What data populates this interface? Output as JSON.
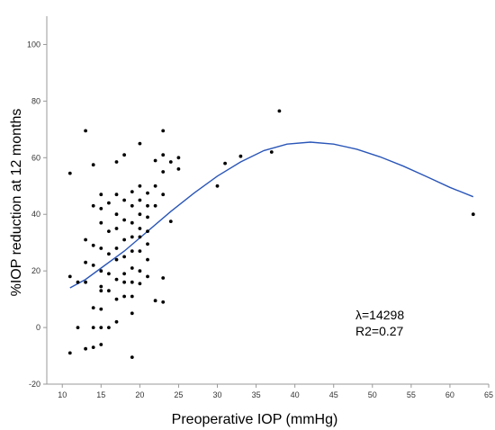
{
  "chart_data": {
    "type": "scatter",
    "title": "",
    "xlabel": "Preoperative IOP (mmHg)",
    "ylabel": "%IOP reduction at 12 months",
    "xlim": [
      8,
      65
    ],
    "ylim": [
      -20,
      110
    ],
    "x_ticks": [
      10,
      15,
      20,
      25,
      30,
      35,
      40,
      45,
      50,
      55,
      60,
      65
    ],
    "y_ticks": [
      -20,
      0,
      20,
      40,
      60,
      80,
      100
    ],
    "grid": false,
    "legend": "none",
    "series": [
      {
        "marker_color": "#000000",
        "points": [
          [
            11,
            54.5
          ],
          [
            11,
            18
          ],
          [
            11,
            -9
          ],
          [
            12,
            16
          ],
          [
            12,
            0
          ],
          [
            13,
            69.5
          ],
          [
            13,
            31
          ],
          [
            13,
            23
          ],
          [
            13,
            16
          ],
          [
            13,
            -7.5
          ],
          [
            14,
            57.5
          ],
          [
            14,
            43
          ],
          [
            14,
            29
          ],
          [
            14,
            22
          ],
          [
            14,
            7
          ],
          [
            14,
            0
          ],
          [
            14,
            -7
          ],
          [
            15,
            47
          ],
          [
            15,
            42
          ],
          [
            15,
            37
          ],
          [
            15,
            28
          ],
          [
            15,
            20
          ],
          [
            15,
            14.5
          ],
          [
            15,
            13
          ],
          [
            15,
            6.5
          ],
          [
            15,
            0
          ],
          [
            15,
            -6
          ],
          [
            16,
            44
          ],
          [
            16,
            34
          ],
          [
            16,
            26
          ],
          [
            16,
            19
          ],
          [
            16,
            13
          ],
          [
            16,
            0
          ],
          [
            17,
            58.5
          ],
          [
            17,
            47
          ],
          [
            17,
            40
          ],
          [
            17,
            35
          ],
          [
            17,
            28
          ],
          [
            17,
            24
          ],
          [
            17,
            17
          ],
          [
            17,
            10
          ],
          [
            17,
            2
          ],
          [
            18,
            61
          ],
          [
            18,
            45
          ],
          [
            18,
            38
          ],
          [
            18,
            31
          ],
          [
            18,
            25
          ],
          [
            18,
            19
          ],
          [
            18,
            16
          ],
          [
            18,
            11
          ],
          [
            19,
            48
          ],
          [
            19,
            43
          ],
          [
            19,
            37
          ],
          [
            19,
            32
          ],
          [
            19,
            27
          ],
          [
            19,
            21
          ],
          [
            19,
            16
          ],
          [
            19,
            11
          ],
          [
            19,
            5
          ],
          [
            19,
            -10.5
          ],
          [
            20,
            65
          ],
          [
            20,
            50
          ],
          [
            20,
            45
          ],
          [
            20,
            40
          ],
          [
            20,
            35
          ],
          [
            20,
            32
          ],
          [
            20,
            27
          ],
          [
            20,
            20
          ],
          [
            20,
            15.5
          ],
          [
            21,
            47.5
          ],
          [
            21,
            43
          ],
          [
            21,
            39
          ],
          [
            21,
            34
          ],
          [
            21,
            29.5
          ],
          [
            21,
            24
          ],
          [
            21,
            18
          ],
          [
            22,
            59
          ],
          [
            22,
            50
          ],
          [
            22,
            43
          ],
          [
            22,
            9.5
          ],
          [
            23,
            69.5
          ],
          [
            23,
            61
          ],
          [
            23,
            55
          ],
          [
            23,
            47
          ],
          [
            23,
            17.5
          ],
          [
            23,
            9
          ],
          [
            24,
            58.5
          ],
          [
            24,
            37.5
          ],
          [
            25,
            60
          ],
          [
            25,
            56
          ],
          [
            30,
            50
          ],
          [
            31,
            58
          ],
          [
            33,
            60.5
          ],
          [
            37,
            62
          ],
          [
            38,
            76.5
          ],
          [
            63,
            40
          ]
        ]
      },
      {
        "type": "line",
        "color": "#2a56b8",
        "points": [
          [
            11,
            14
          ],
          [
            13,
            17
          ],
          [
            15,
            21
          ],
          [
            18,
            27
          ],
          [
            21,
            34
          ],
          [
            24,
            41
          ],
          [
            27,
            47.5
          ],
          [
            30,
            53.5
          ],
          [
            33,
            58.5
          ],
          [
            36,
            62.5
          ],
          [
            39,
            64.8
          ],
          [
            42,
            65.5
          ],
          [
            45,
            64.8
          ],
          [
            48,
            63
          ],
          [
            51,
            60.3
          ],
          [
            54,
            57
          ],
          [
            57,
            53.3
          ],
          [
            60,
            49.5
          ],
          [
            63,
            46.2
          ]
        ]
      }
    ],
    "annotations": [
      "λ=14298",
      "R2=0.27"
    ]
  }
}
